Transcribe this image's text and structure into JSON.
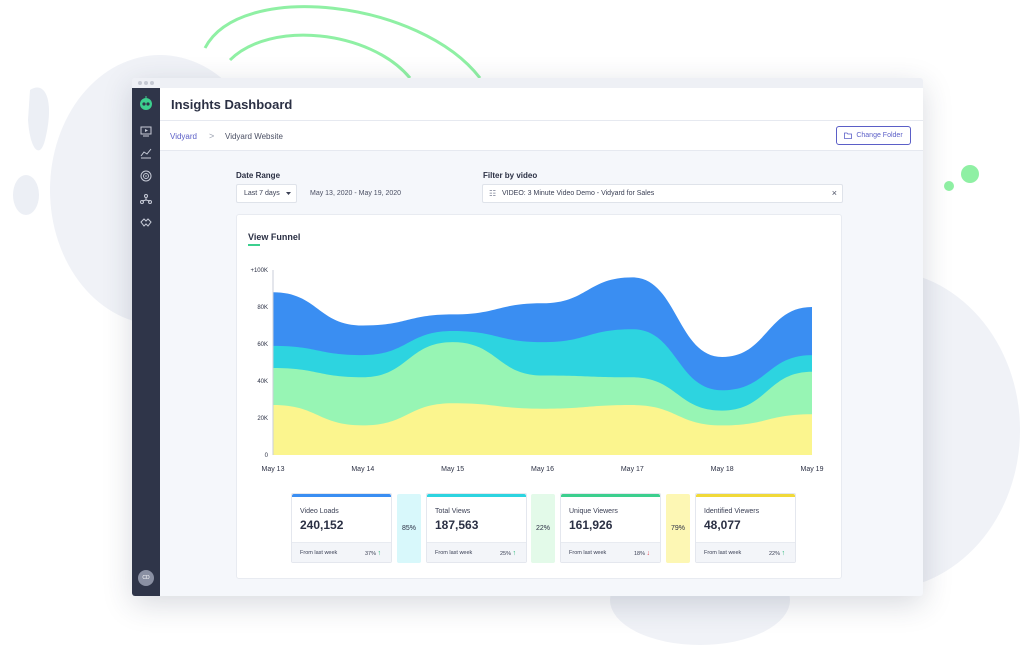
{
  "app": {
    "title": "Insights Dashboard"
  },
  "breadcrumb": {
    "root": "Vidyard",
    "separator": ">",
    "current": "Vidyard Website"
  },
  "toolbar": {
    "change_folder_label": "Change Folder"
  },
  "filters": {
    "date_range_label": "Date Range",
    "date_range_value": "Last 7 days",
    "date_range_text": "May 13, 2020 - May 19, 2020",
    "filter_label": "Filter by video",
    "filter_value": "VIDEO: 3 Minute Video Demo - Vidyard for Sales",
    "filter_clear": "×"
  },
  "sidebar": {
    "items": [
      {
        "icon": "video-icon"
      },
      {
        "icon": "analytics-icon"
      },
      {
        "icon": "target-icon"
      },
      {
        "icon": "network-icon"
      },
      {
        "icon": "handshake-icon"
      }
    ],
    "avatar_initials": "CD"
  },
  "chart_data": {
    "type": "area",
    "title": "View Funnel",
    "x": [
      "May 13",
      "May 14",
      "May 15",
      "May 16",
      "May 17",
      "May 18",
      "May 19"
    ],
    "y_ticks": [
      "0",
      "20K",
      "40K",
      "60K",
      "80K",
      "+100K"
    ],
    "ylim": [
      0,
      100000
    ],
    "stacked": true,
    "series": [
      {
        "color": "#fbf58e",
        "values": [
          27000,
          16000,
          28000,
          25000,
          27000,
          16000,
          22000
        ]
      },
      {
        "color": "#97f5b4",
        "values": [
          20000,
          26000,
          33000,
          18000,
          15000,
          8000,
          23000
        ]
      },
      {
        "color": "#2dd4e0",
        "values": [
          12000,
          12000,
          6000,
          18000,
          26000,
          11000,
          9000
        ]
      },
      {
        "color": "#3a8ef2",
        "values": [
          29000,
          16000,
          9000,
          21000,
          28000,
          18000,
          26000
        ]
      }
    ]
  },
  "stats": [
    {
      "label": "Video Loads",
      "value": "240,152",
      "foot": "From last week",
      "change": "37%",
      "direction": "up",
      "color": "#3a8ef2"
    },
    {
      "label": "Total Views",
      "value": "187,563",
      "foot": "From last week",
      "change": "25%",
      "direction": "up",
      "color": "#2dd4e0"
    },
    {
      "label": "Unique Viewers",
      "value": "161,926",
      "foot": "From last week",
      "change": "18%",
      "direction": "down",
      "color": "#3ccf8e"
    },
    {
      "label": "Identified Viewers",
      "value": "48,077",
      "foot": "From last week",
      "change": "22%",
      "direction": "up",
      "color": "#f0d93a"
    }
  ],
  "conversions": [
    {
      "value": "85%",
      "color": "#d8f8fb"
    },
    {
      "value": "22%",
      "color": "#e3fae9"
    },
    {
      "value": "79%",
      "color": "#fdf7b4"
    }
  ],
  "arrows": {
    "up": "↑",
    "down": "↓"
  }
}
